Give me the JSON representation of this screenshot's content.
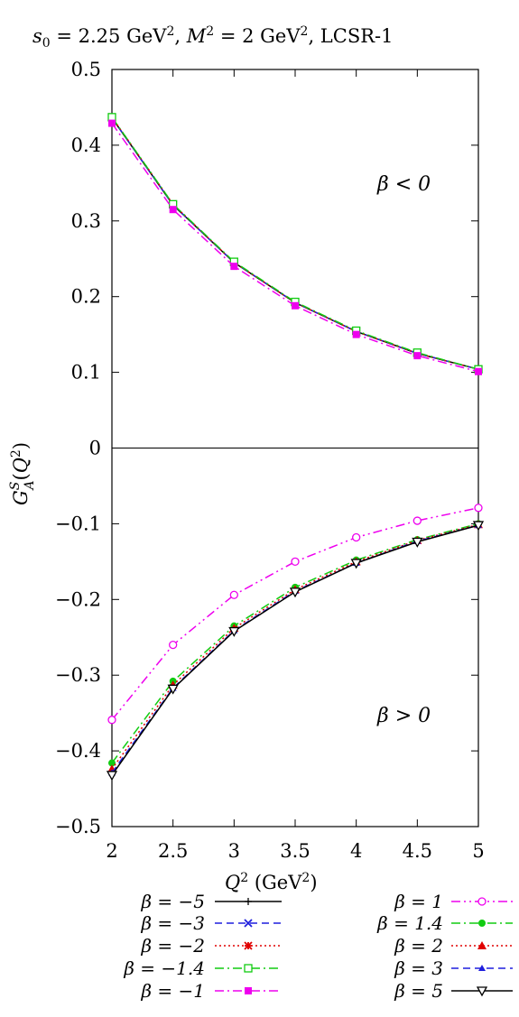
{
  "chart_data": {
    "type": "line",
    "title": "s0 = 2.25 GeV², M² = 2 GeV², LCSR-1",
    "xlabel": "Q² (GeV²)",
    "ylabel": "G_A^S(Q²)",
    "xlim": [
      2,
      5
    ],
    "ylim": [
      -0.5,
      0.5
    ],
    "x_ticks": [
      "2",
      "2.5",
      "3",
      "3.5",
      "4",
      "4.5",
      "5"
    ],
    "y_ticks": [
      "−0.5",
      "−0.4",
      "−0.3",
      "−0.2",
      "−0.1",
      "0",
      "0.1",
      "0.2",
      "0.3",
      "0.4",
      "0.5"
    ],
    "grid": false,
    "zero_line": true,
    "legend_placement": "bottom, two columns",
    "annotations": [
      "β < 0",
      "β > 0"
    ],
    "x": [
      2,
      2.5,
      3,
      3.5,
      4,
      4.5,
      5
    ],
    "series": [
      {
        "name": "β = −5",
        "color": "#000000",
        "dash": "solid",
        "marker": "plus",
        "values": [
          0.436,
          0.321,
          0.245,
          0.192,
          0.154,
          0.125,
          0.104
        ]
      },
      {
        "name": "β = −3",
        "color": "#1f1fdd",
        "dash": "dash",
        "marker": "cross",
        "values": [
          0.436,
          0.321,
          0.245,
          0.192,
          0.154,
          0.125,
          0.104
        ]
      },
      {
        "name": "β = −2",
        "color": "#e00000",
        "dash": "dot",
        "marker": "star",
        "values": [
          0.437,
          0.322,
          0.245,
          0.192,
          0.154,
          0.125,
          0.104
        ]
      },
      {
        "name": "β = −1.4",
        "color": "#11cc11",
        "dash": "dashdot",
        "marker": "open-square",
        "values": [
          0.437,
          0.322,
          0.246,
          0.193,
          0.155,
          0.126,
          0.104
        ]
      },
      {
        "name": "β = −1",
        "color": "#ee00ee",
        "dash": "dashdot",
        "marker": "filled-square",
        "values": [
          0.429,
          0.315,
          0.24,
          0.188,
          0.15,
          0.122,
          0.101
        ]
      },
      {
        "name": "β = 1",
        "color": "#ee00ee",
        "dash": "dashdotdot",
        "marker": "open-circle",
        "values": [
          -0.359,
          -0.26,
          -0.194,
          -0.15,
          -0.118,
          -0.096,
          -0.079
        ]
      },
      {
        "name": "β = 1.4",
        "color": "#11cc11",
        "dash": "dashdot",
        "marker": "filled-circle",
        "values": [
          -0.416,
          -0.308,
          -0.235,
          -0.184,
          -0.148,
          -0.121,
          -0.1
        ]
      },
      {
        "name": "β = 2",
        "color": "#e00000",
        "dash": "dot",
        "marker": "filled-triangle-up",
        "values": [
          -0.424,
          -0.313,
          -0.238,
          -0.187,
          -0.15,
          -0.122,
          -0.101
        ]
      },
      {
        "name": "β = 3",
        "color": "#1f1fdd",
        "dash": "dash",
        "marker": "small-triangle-up",
        "values": [
          -0.429,
          -0.317,
          -0.241,
          -0.189,
          -0.152,
          -0.123,
          -0.102
        ]
      },
      {
        "name": "β = 5",
        "color": "#000000",
        "dash": "solid",
        "marker": "open-triangle-down",
        "values": [
          -0.432,
          -0.318,
          -0.242,
          -0.19,
          -0.152,
          -0.124,
          -0.102
        ]
      }
    ]
  }
}
